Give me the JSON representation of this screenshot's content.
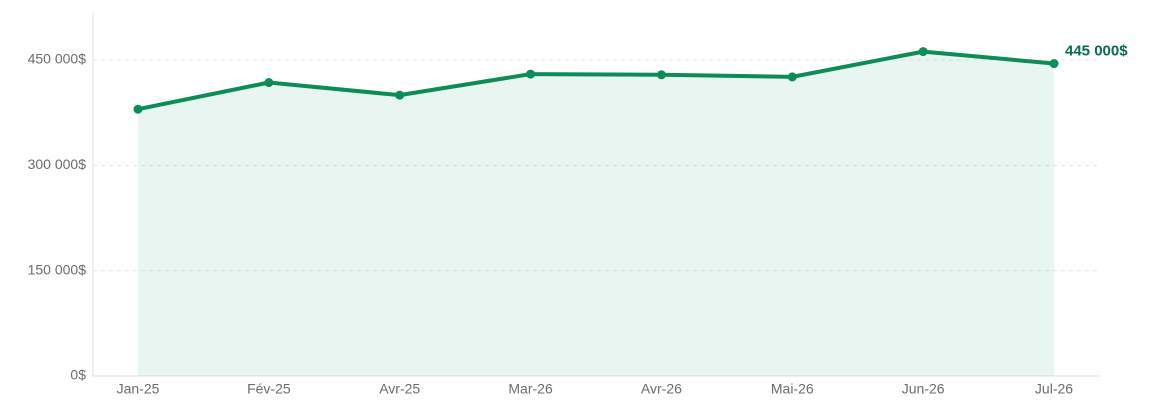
{
  "chart_data": {
    "type": "area",
    "categories": [
      "Jan-25",
      "Fév-25",
      "Avr-25",
      "Mar-26",
      "Avr-26",
      "Mai-26",
      "Jun-26",
      "Jul-26"
    ],
    "values": [
      380000,
      418000,
      400000,
      430000,
      429000,
      426000,
      462000,
      445000
    ],
    "value_labels": [
      null,
      null,
      null,
      null,
      null,
      null,
      null,
      "445 000$"
    ],
    "color": "#0c8c58",
    "ylim": [
      0,
      517000
    ],
    "yticks": [
      {
        "value": 0,
        "label": "0$"
      },
      {
        "value": 150000,
        "label": "150 000$"
      },
      {
        "value": 300000,
        "label": "300 000$"
      },
      {
        "value": 450000,
        "label": "450 000$"
      }
    ],
    "grid": true
  }
}
